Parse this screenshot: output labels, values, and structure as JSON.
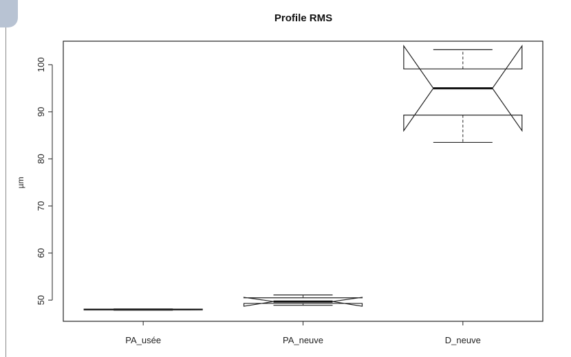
{
  "chart_data": {
    "type": "box",
    "title": "Profile RMS",
    "xlabel": "",
    "ylabel": "µm",
    "ylim": [
      45.5,
      105
    ],
    "yticks": [
      50,
      60,
      70,
      80,
      90,
      100
    ],
    "categories": [
      "PA_usée",
      "PA_neuve",
      "D_neuve"
    ],
    "boxes": [
      {
        "name": "PA_usée",
        "whisker_low": 47.9,
        "q1": 47.9,
        "median": 48.0,
        "q3": 48.1,
        "whisker_high": 48.1,
        "notch_low": 47.95,
        "notch_high": 48.05
      },
      {
        "name": "PA_neuve",
        "whisker_low": 48.9,
        "q1": 49.3,
        "median": 49.7,
        "q3": 50.5,
        "whisker_high": 51.1,
        "notch_low": 48.7,
        "notch_high": 50.6
      },
      {
        "name": "D_neuve",
        "whisker_low": 83.5,
        "q1": 89.3,
        "median": 95.0,
        "q3": 99.1,
        "whisker_high": 103.2,
        "notch_low": 86.0,
        "notch_high": 104.0
      }
    ],
    "notched": true,
    "grid": false
  }
}
